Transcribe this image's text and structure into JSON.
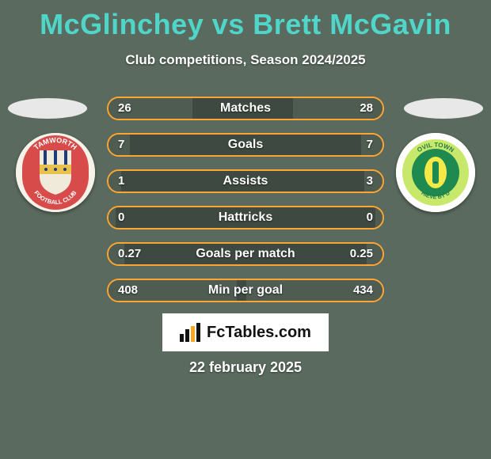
{
  "colors": {
    "background": "#5a6a5e",
    "title": "#4fd6c8",
    "subtitle": "#ffffff",
    "ellipse": "#e8e8e8",
    "bar_border": "#ffa632",
    "bar_track": "#3e4a41",
    "bar_fill": "#4f5c52",
    "text_on_bar": "#ffffff",
    "footer_box_bg": "#ffffff",
    "footer_box_text": "#111111",
    "footer_logo_accent": "#f5a623",
    "date_text": "#ffffff",
    "crest_left_outer": "#f5f2ea",
    "crest_left_banner": "#d84b4b",
    "crest_left_shield_bg": "#f0eada",
    "crest_left_shield_stripe": "#1e3a7a",
    "crest_left_shield_band": "#e8c24a",
    "crest_left_text": "#1e3a7a",
    "crest_right_outer": "#ffffff",
    "crest_right_ring": "#c7e86b",
    "crest_right_center": "#1f8a4f",
    "crest_right_inner": "#f3ea4a",
    "crest_right_text": "#1f7a48"
  },
  "title": "McGlinchey vs Brett McGavin",
  "subtitle": "Club competitions, Season 2024/2025",
  "stats": [
    {
      "label": "Matches",
      "left_value": "26",
      "right_value": "28",
      "left_pct": 31,
      "right_pct": 33
    },
    {
      "label": "Goals",
      "left_value": "7",
      "right_value": "7",
      "left_pct": 8,
      "right_pct": 8
    },
    {
      "label": "Assists",
      "left_value": "1",
      "right_value": "3",
      "left_pct": 5,
      "right_pct": 7
    },
    {
      "label": "Hattricks",
      "left_value": "0",
      "right_value": "0",
      "left_pct": 3,
      "right_pct": 3
    },
    {
      "label": "Goals per match",
      "left_value": "0.27",
      "right_value": "0.25",
      "left_pct": 6,
      "right_pct": 6
    },
    {
      "label": "Min per goal",
      "left_value": "408",
      "right_value": "434",
      "left_pct": 47,
      "right_pct": 50
    }
  ],
  "footer_brand": "FcTables.com",
  "footer_date": "22 february 2025",
  "crest_left_text_top": "TAMWORTH",
  "crest_left_text_bottom": "FOOTBALL CLUB",
  "crest_right_text_top": "OVIL TOWN",
  "crest_right_text_bottom": "HIEVE BY U"
}
